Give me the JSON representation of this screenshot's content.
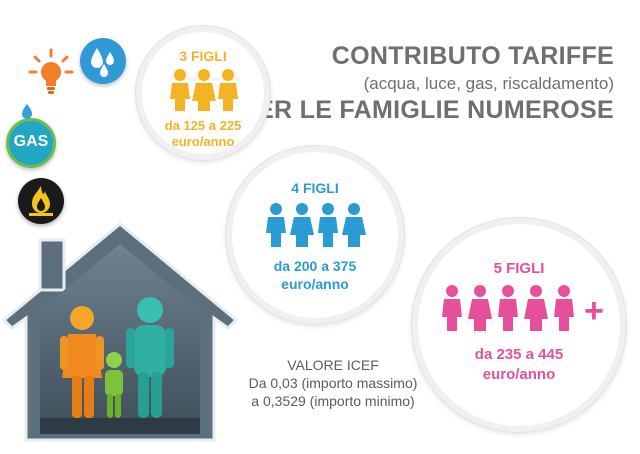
{
  "title": {
    "line1": "CONTRIBUTO TARIFFE",
    "line2": "(acqua, luce, gas, riscaldamento)",
    "line3": "PER LE FAMIGLIE NUMEROSE"
  },
  "utility_icons": {
    "gas_label": "GAS"
  },
  "tiers": [
    {
      "children": "3 FIGLI",
      "range": "da 125 a 225",
      "unit": "euro/anno",
      "color": "#f5b324"
    },
    {
      "children": "4 FIGLI",
      "range": "da 200 a 375",
      "unit": "euro/anno",
      "color": "#2b9bd3"
    },
    {
      "children": "5 FIGLI",
      "range": "da 235 a 445",
      "unit": "euro/anno",
      "color": "#e6509a"
    }
  ],
  "icef": {
    "label": "VALORE ICEF",
    "line1": "Da 0,03 (importo massimo)",
    "line2": "a 0,3529 (importo minimo)"
  },
  "plus_sign": "+"
}
